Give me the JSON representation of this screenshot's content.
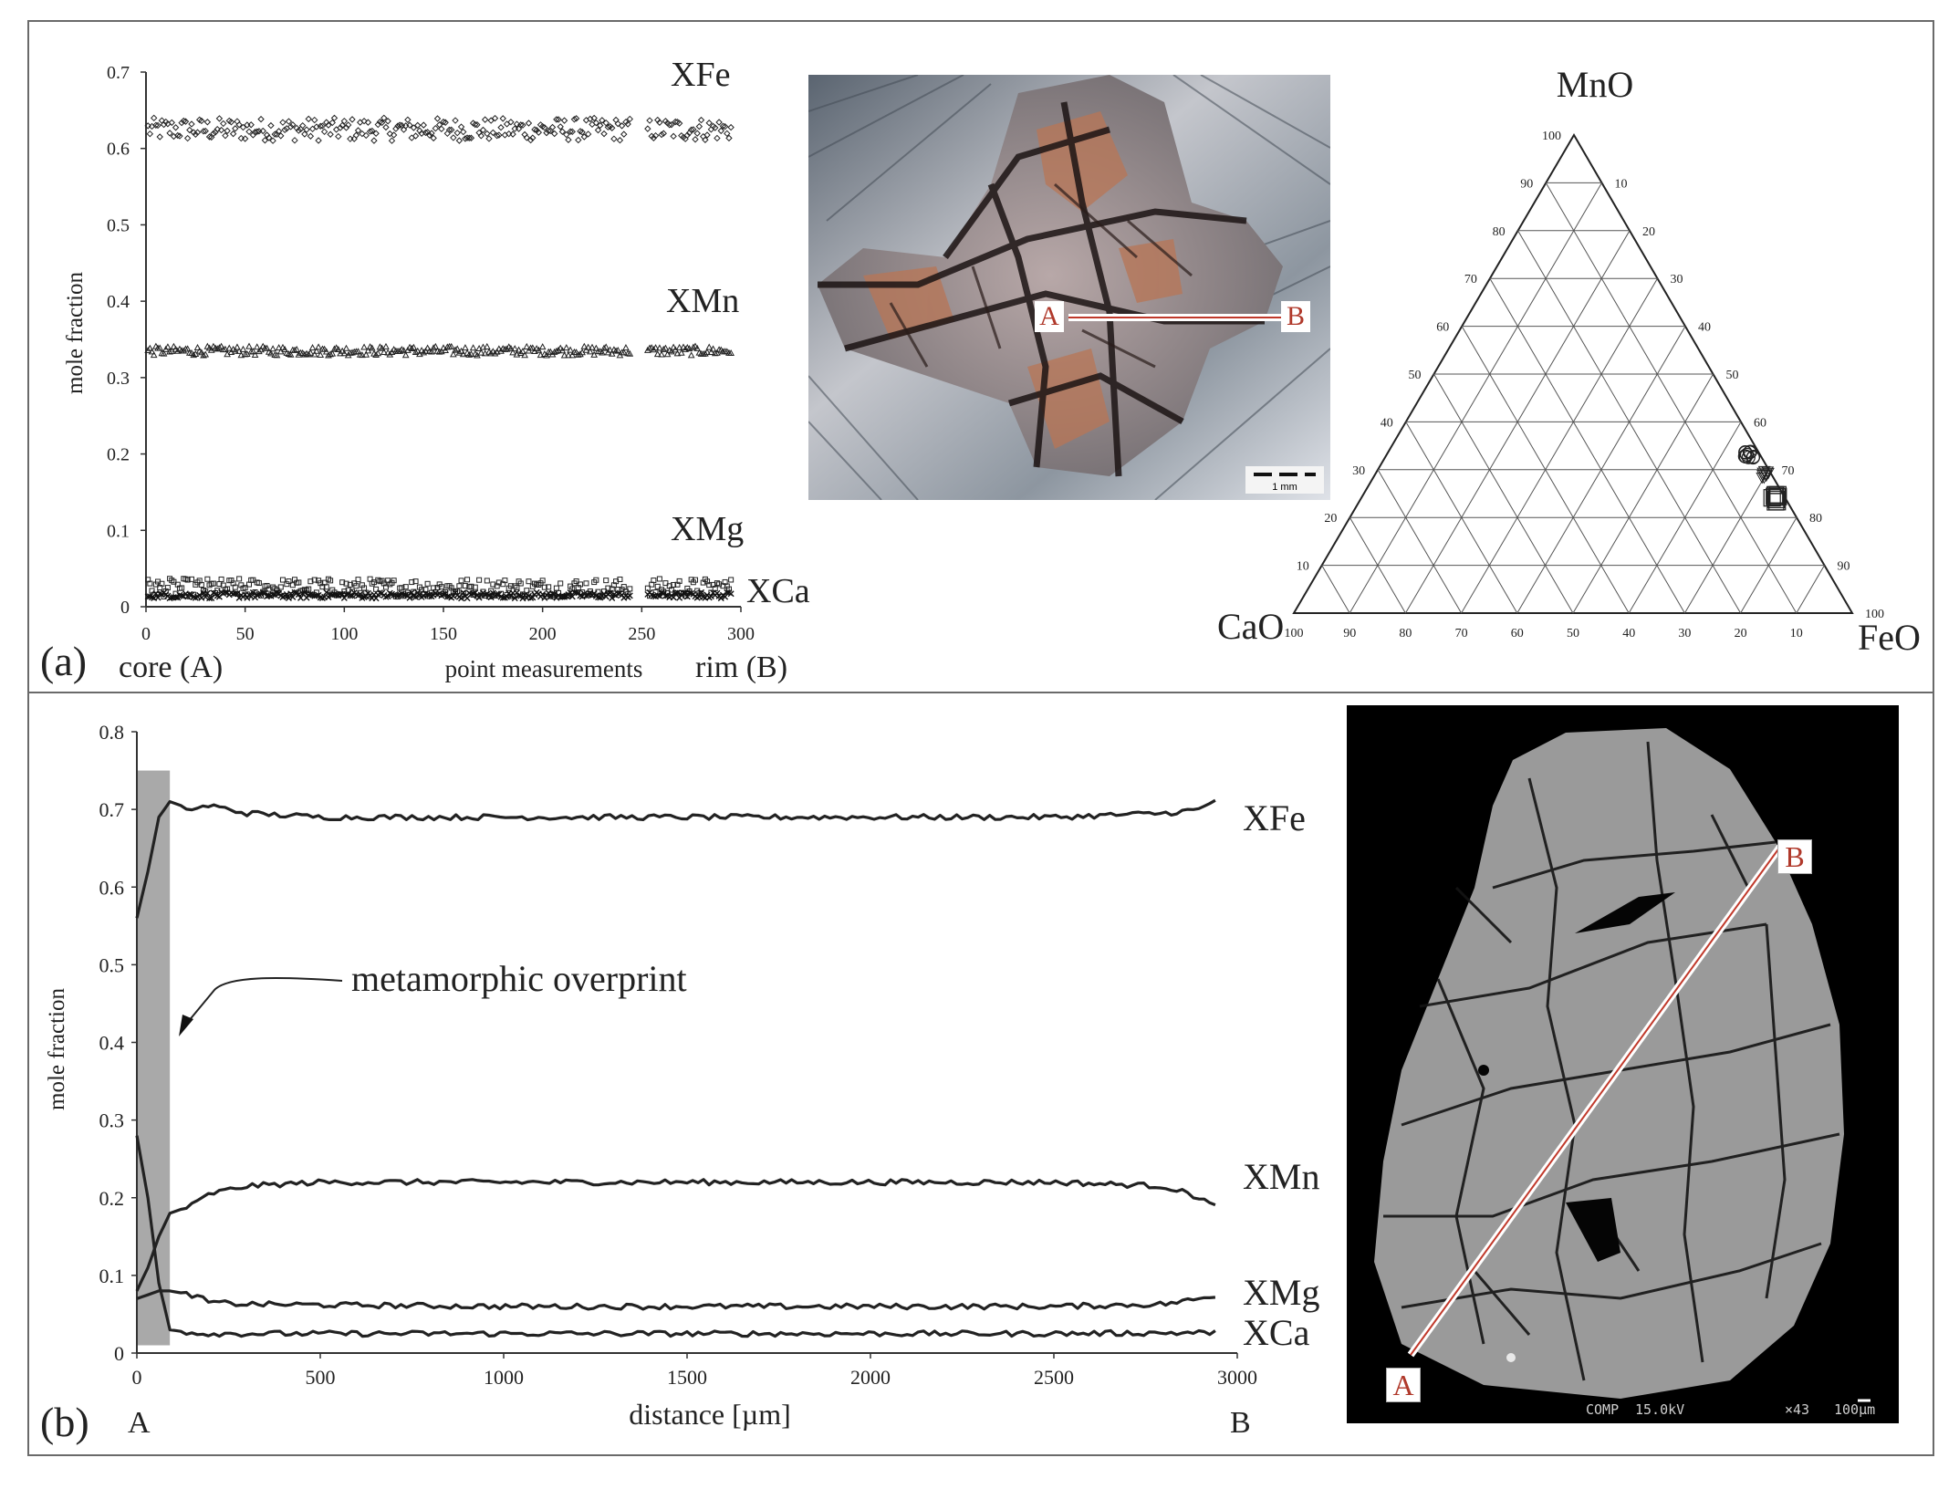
{
  "panel_labels": {
    "a": "(a)",
    "b": "(b)"
  },
  "top_chart": {
    "y_axis_label": "mole fraction",
    "x_axis_label": "point measurements",
    "left_end_label": "core (A)",
    "right_end_label": "rim (B)",
    "series_labels": {
      "fe": "XFe",
      "mn": "XMn",
      "mg": "XMg",
      "ca": "XCa"
    }
  },
  "bottom_chart": {
    "y_axis_label": "mole fraction",
    "x_axis_label": "distance [µm]",
    "left_end_label": "A",
    "right_end_label": "B",
    "annotation": "metamorphic overprint",
    "series_labels": {
      "fe": "XFe",
      "mn": "XMn",
      "mg": "XMg",
      "ca": "XCa"
    }
  },
  "micrograph": {
    "point_a": "A",
    "point_b": "B",
    "scale_bar": "1 mm"
  },
  "ternary": {
    "apex_top": "MnO",
    "apex_left": "CaO",
    "apex_right": "FeO"
  },
  "bse_image": {
    "point_a": "A",
    "point_b": "B",
    "info_comp": "COMP",
    "info_kv": "15.0kV",
    "info_mag": "×43",
    "info_scale": "100μm"
  },
  "chart_data": [
    {
      "type": "scatter",
      "xlabel": "point measurements",
      "ylabel": "mole fraction",
      "xlim": [
        0,
        300
      ],
      "ylim": [
        0,
        0.7
      ],
      "x_ticks": [
        0,
        50,
        100,
        150,
        200,
        250,
        300
      ],
      "y_ticks": [
        0,
        0.1,
        0.2,
        0.3,
        0.4,
        0.5,
        0.6,
        0.7
      ],
      "x_range_measured": [
        1,
        295
      ],
      "gap": [
        245,
        252
      ],
      "series": [
        {
          "name": "XFe",
          "marker": "diamond",
          "mean": 0.625,
          "spread": 0.015
        },
        {
          "name": "XMn",
          "marker": "triangle",
          "mean": 0.335,
          "spread": 0.006
        },
        {
          "name": "XMg",
          "marker": "square",
          "mean": 0.025,
          "spread": 0.012
        },
        {
          "name": "XCa",
          "marker": "cross",
          "mean": 0.015,
          "spread": 0.004
        }
      ]
    },
    {
      "type": "line",
      "xlabel": "distance [µm]",
      "ylabel": "mole fraction",
      "xlim": [
        0,
        3000
      ],
      "ylim": [
        0,
        0.8
      ],
      "x_ticks": [
        0,
        500,
        1000,
        1500,
        2000,
        2500,
        3000
      ],
      "y_ticks": [
        0,
        0.1,
        0.2,
        0.3,
        0.4,
        0.5,
        0.6,
        0.7,
        0.8
      ],
      "shaded_region": [
        0,
        90
      ],
      "x": [
        0,
        30,
        60,
        90,
        150,
        200,
        300,
        500,
        1000,
        1500,
        2000,
        2500,
        2800,
        2900,
        2950
      ],
      "series": [
        {
          "name": "XFe",
          "values": [
            0.56,
            0.62,
            0.69,
            0.71,
            0.7,
            0.705,
            0.695,
            0.69,
            0.69,
            0.69,
            0.69,
            0.69,
            0.695,
            0.7,
            0.715
          ]
        },
        {
          "name": "XMn",
          "values": [
            0.08,
            0.11,
            0.15,
            0.18,
            0.19,
            0.205,
            0.215,
            0.22,
            0.22,
            0.22,
            0.22,
            0.22,
            0.215,
            0.2,
            0.185
          ]
        },
        {
          "name": "XMg",
          "values": [
            0.07,
            0.075,
            0.08,
            0.08,
            0.075,
            0.065,
            0.063,
            0.062,
            0.06,
            0.06,
            0.06,
            0.06,
            0.063,
            0.07,
            0.075
          ]
        },
        {
          "name": "XCa",
          "values": [
            0.28,
            0.2,
            0.09,
            0.03,
            0.026,
            0.025,
            0.025,
            0.025,
            0.025,
            0.025,
            0.025,
            0.025,
            0.026,
            0.026,
            0.027
          ]
        }
      ]
    },
    {
      "type": "scatter",
      "subtype": "ternary",
      "axes": [
        "MnO",
        "CaO",
        "FeO"
      ],
      "tick_values": [
        10,
        20,
        30,
        40,
        50,
        60,
        70,
        80,
        90,
        100
      ],
      "clusters": [
        {
          "marker": "circle",
          "MnO": 33,
          "CaO": 2,
          "FeO": 65
        },
        {
          "marker": "triangle",
          "MnO": 29,
          "CaO": 1,
          "FeO": 70
        },
        {
          "marker": "square",
          "MnO": 24,
          "CaO": 2,
          "FeO": 74
        }
      ]
    }
  ]
}
